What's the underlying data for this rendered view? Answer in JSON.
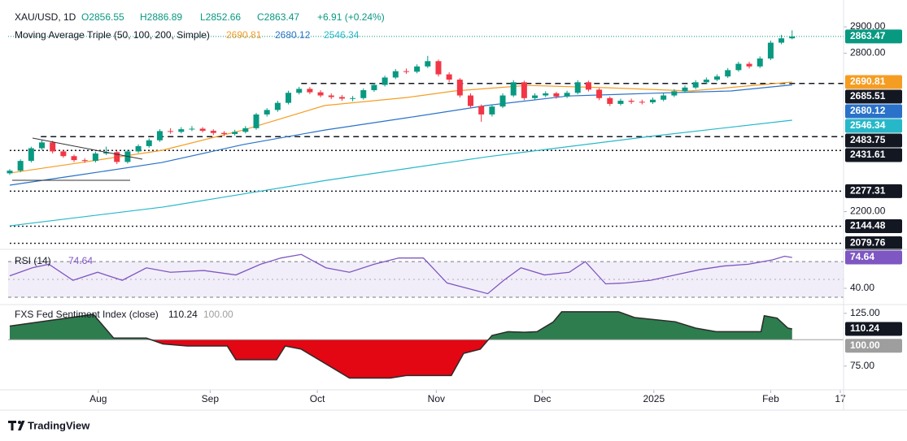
{
  "brand": "TradingView",
  "chart_data": [
    {
      "type": "candlestick",
      "header": {
        "symbol": "XAU/USD, 1D",
        "open": "O2856.55",
        "high": "H2886.89",
        "low": "L2852.66",
        "close": "C2863.47",
        "change": "+6.91 (+0.24%)"
      },
      "up_color": "#089981",
      "down_color": "#f23645",
      "xlim": [
        -0.15,
        77.8
      ],
      "xticks": [
        {
          "value": 8.26,
          "label": "Aug"
        },
        {
          "value": 18.7,
          "label": "Sep"
        },
        {
          "value": 28.7,
          "label": "Oct"
        },
        {
          "value": 39.8,
          "label": "Nov"
        },
        {
          "value": 49.7,
          "label": "Dec"
        },
        {
          "value": 60.1,
          "label": "2025"
        },
        {
          "value": 71,
          "label": "Feb"
        },
        {
          "value": 77.5,
          "label": "17"
        }
      ],
      "ylim": [
        2063,
        2971
      ],
      "yticks": [
        {
          "value": 2200,
          "label": "2200.00"
        },
        {
          "value": 2800,
          "label": "2800.00"
        },
        {
          "value": 2900,
          "label": "2900.00"
        }
      ],
      "open": [
        2345,
        2355,
        2392,
        2440,
        2462,
        2428,
        2410,
        2395,
        2392,
        2420,
        2425,
        2388,
        2428,
        2448,
        2470,
        2505,
        2502,
        2512,
        2514,
        2506,
        2498,
        2494,
        2502,
        2516,
        2568,
        2585,
        2612,
        2650,
        2665,
        2652,
        2640,
        2634,
        2628,
        2630,
        2660,
        2680,
        2708,
        2732,
        2730,
        2750,
        2770,
        2720,
        2700,
        2640,
        2600,
        2568,
        2598,
        2640,
        2690,
        2630,
        2640,
        2648,
        2636,
        2650,
        2690,
        2662,
        2630,
        2608,
        2620,
        2616,
        2614,
        2624,
        2640,
        2656,
        2670,
        2690,
        2700,
        2712,
        2736,
        2760,
        2750,
        2780,
        2840,
        2856.55
      ],
      "high": [
        2361,
        2398,
        2446,
        2470,
        2468,
        2434,
        2416,
        2402,
        2427,
        2446,
        2430,
        2434,
        2455,
        2477,
        2512,
        2516,
        2520,
        2524,
        2520,
        2512,
        2505,
        2510,
        2524,
        2574,
        2592,
        2620,
        2658,
        2673,
        2672,
        2660,
        2648,
        2642,
        2638,
        2667,
        2688,
        2715,
        2740,
        2742,
        2758,
        2790,
        2776,
        2728,
        2706,
        2648,
        2606,
        2606,
        2648,
        2698,
        2696,
        2648,
        2656,
        2654,
        2658,
        2698,
        2696,
        2668,
        2636,
        2628,
        2628,
        2624,
        2632,
        2648,
        2664,
        2678,
        2698,
        2708,
        2720,
        2744,
        2768,
        2768,
        2788,
        2848,
        2870,
        2886.89
      ],
      "low": [
        2339,
        2349,
        2386,
        2434,
        2420,
        2404,
        2388,
        2385,
        2386,
        2414,
        2380,
        2382,
        2422,
        2442,
        2464,
        2495,
        2496,
        2505,
        2500,
        2490,
        2486,
        2488,
        2496,
        2510,
        2560,
        2578,
        2606,
        2644,
        2645,
        2633,
        2626,
        2620,
        2618,
        2624,
        2654,
        2674,
        2702,
        2722,
        2724,
        2744,
        2712,
        2690,
        2632,
        2592,
        2540,
        2560,
        2592,
        2634,
        2622,
        2624,
        2634,
        2628,
        2630,
        2644,
        2655,
        2622,
        2600,
        2602,
        2608,
        2606,
        2608,
        2618,
        2634,
        2650,
        2664,
        2684,
        2694,
        2706,
        2730,
        2742,
        2744,
        2774,
        2834,
        2852.66
      ],
      "close": [
        2355,
        2392,
        2440,
        2462,
        2428,
        2410,
        2395,
        2392,
        2420,
        2425,
        2388,
        2428,
        2448,
        2470,
        2505,
        2502,
        2512,
        2514,
        2506,
        2498,
        2494,
        2502,
        2516,
        2568,
        2585,
        2612,
        2650,
        2665,
        2652,
        2640,
        2634,
        2628,
        2630,
        2660,
        2680,
        2708,
        2732,
        2730,
        2750,
        2770,
        2720,
        2700,
        2640,
        2600,
        2568,
        2598,
        2640,
        2690,
        2630,
        2640,
        2648,
        2636,
        2650,
        2690,
        2662,
        2630,
        2608,
        2620,
        2616,
        2614,
        2624,
        2640,
        2656,
        2670,
        2690,
        2700,
        2712,
        2736,
        2760,
        2750,
        2780,
        2840,
        2856.55,
        2863.47
      ],
      "moving_averages": {
        "title": "Moving Average Triple (50, 100, 200, Simple)",
        "series": [
          {
            "color": "#f59d23",
            "x": [
              0,
              6.7,
              14.2,
              21.8,
              29.4,
              37,
              41.5,
              48.3,
              55.9,
              63.5,
              73
            ],
            "values": [
              2346,
              2386,
              2432,
              2509,
              2602,
              2632,
              2657,
              2678,
              2669,
              2657,
              2690.81
            ]
          },
          {
            "color": "#2a72c9",
            "x": [
              0,
              6.7,
              14.2,
              21.8,
              29.4,
              37,
              44.5,
              52.1,
              59.7,
              67.3,
              73
            ],
            "values": [
              2300,
              2340,
              2386,
              2454,
              2509,
              2555,
              2602,
              2638,
              2648,
              2657,
              2680.12
            ]
          },
          {
            "color": "#26b8c9",
            "x": [
              0,
              14.3,
              29.5,
              44.6,
              59.8,
              73
            ],
            "values": [
              2146,
              2217,
              2318,
              2408,
              2485,
              2546.34
            ]
          }
        ]
      },
      "levels": [
        {
          "value": 2685.51,
          "style": "dashed",
          "start": 27.2
        },
        {
          "value": 2483.75,
          "style": "dashed",
          "start": 2.9
        },
        {
          "value": 2431.61,
          "style": "dotted",
          "start": 0
        },
        {
          "value": 2277.31,
          "style": "dotted",
          "start": 0
        },
        {
          "value": 2144.48,
          "style": "dotted",
          "start": 0
        },
        {
          "value": 2079.76,
          "style": "dotted",
          "start": 0
        }
      ]
    },
    {
      "type": "line",
      "title": "RSI (14)",
      "color": "#7e57c2",
      "band": [
        30,
        70
      ],
      "midline": 50,
      "ylim": [
        24.5,
        81
      ],
      "yticks": [
        {
          "value": 40,
          "label": "40.00"
        }
      ],
      "x": [
        0,
        2.1,
        3.65,
        5.9,
        8.2,
        10.5,
        12.75,
        15,
        18.1,
        21.1,
        23.4,
        25.3,
        27.2,
        29.5,
        31.7,
        34,
        36.3,
        38.6,
        40.8,
        42.7,
        44.6,
        46.1,
        47.7,
        49.9,
        52.2,
        53.7,
        55.6,
        57.5,
        59.8,
        62.1,
        64.4,
        66.6,
        68.9,
        71.2,
        72.3,
        73
      ],
      "values": [
        54,
        63,
        67,
        49,
        58,
        49,
        63,
        58,
        60,
        55,
        67,
        74,
        78,
        63,
        58,
        67,
        74,
        74,
        46,
        40,
        34,
        49,
        63,
        55,
        58,
        70,
        45,
        46,
        49,
        55,
        61,
        65,
        67,
        72,
        76,
        74.64
      ]
    },
    {
      "type": "area",
      "title": "FXS Fed Sentiment Index (close)",
      "above_color": "#2e7d4f",
      "below_color": "#e30613",
      "line_color": "#2b2b2b",
      "baseline": {
        "value": 100,
        "label": "100.00"
      },
      "ylim": [
        54,
        131
      ],
      "yticks": [
        {
          "value": 125,
          "label": "125.00"
        },
        {
          "value": 75,
          "label": "75.00"
        }
      ],
      "x": [
        0,
        7.8,
        8.9,
        9.7,
        12.75,
        14.3,
        16.55,
        20.3,
        21.1,
        24.9,
        25.7,
        27.2,
        29.5,
        31.7,
        35.5,
        37,
        41.2,
        42.35,
        43.9,
        45,
        46.5,
        48,
        49.2,
        50.7,
        51.5,
        56.8,
        58.3,
        62.1,
        64,
        65.9,
        70.1,
        70.4,
        71.6,
        72.6,
        73
      ],
      "values": [
        112.9,
        124,
        111,
        101.5,
        101.5,
        96,
        94,
        94,
        81,
        81,
        94,
        91,
        77,
        63.6,
        63.6,
        66,
        66,
        87,
        91,
        104,
        107.6,
        107,
        107.6,
        116.7,
        126.5,
        126.5,
        121,
        117,
        111,
        107.6,
        107.6,
        122.7,
        120.5,
        111,
        110.24
      ]
    }
  ]
}
